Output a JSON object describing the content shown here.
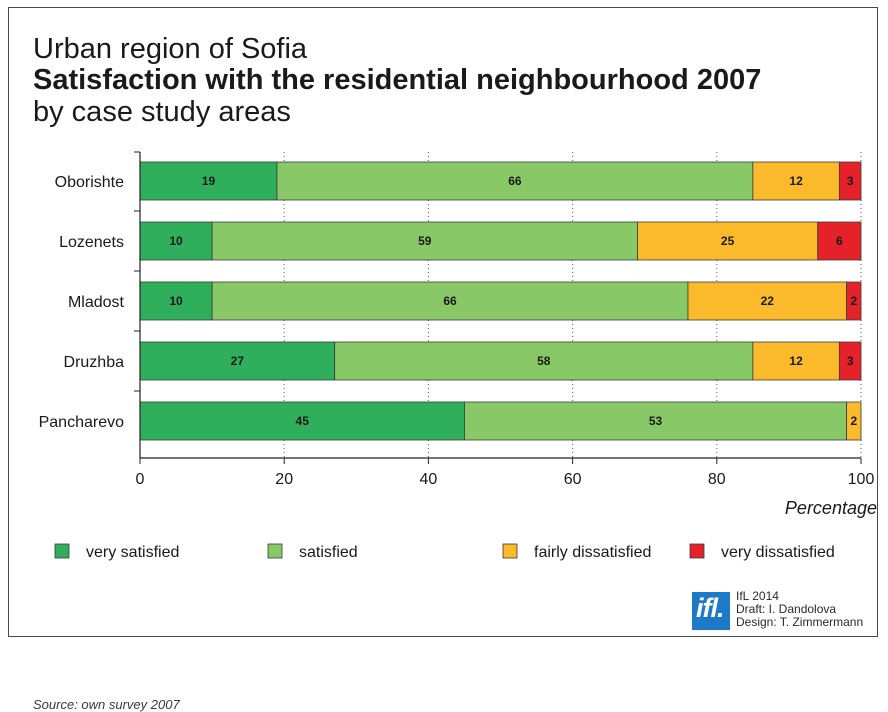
{
  "title": {
    "line1": "Urban region of Sofia",
    "line2": "Satisfaction with the residential neighbourhood 2007",
    "line3": "by case study areas"
  },
  "chart_data": {
    "type": "bar",
    "orientation": "horizontal",
    "stacked": true,
    "categories": [
      "Oborishte",
      "Lozenets",
      "Mladost",
      "Druzhba",
      "Pancharevo"
    ],
    "series": [
      {
        "name": "very satisfied",
        "color": "#2fae5b",
        "values": [
          19,
          10,
          10,
          27,
          45
        ]
      },
      {
        "name": "satisfied",
        "color": "#88c867",
        "values": [
          66,
          59,
          66,
          58,
          53
        ]
      },
      {
        "name": "fairly dissatisfied",
        "color": "#fbb92c",
        "values": [
          12,
          25,
          22,
          12,
          2
        ]
      },
      {
        "name": "very dissatisfied",
        "color": "#e5222a",
        "values": [
          3,
          6,
          2,
          3,
          null
        ]
      }
    ],
    "xlabel": "Percentage",
    "xlim": [
      0,
      100
    ],
    "xticks": [
      0,
      20,
      40,
      60,
      80,
      100
    ],
    "grid": "vertical dotted",
    "legend": "bottom"
  },
  "source": "Source: own survey 2007",
  "logo": {
    "text": "ifl.",
    "color": "#1d7ac9"
  },
  "credits": [
    "IfL 2014",
    "Draft: I. Dandolova",
    "Design: T. Zimmermann"
  ]
}
